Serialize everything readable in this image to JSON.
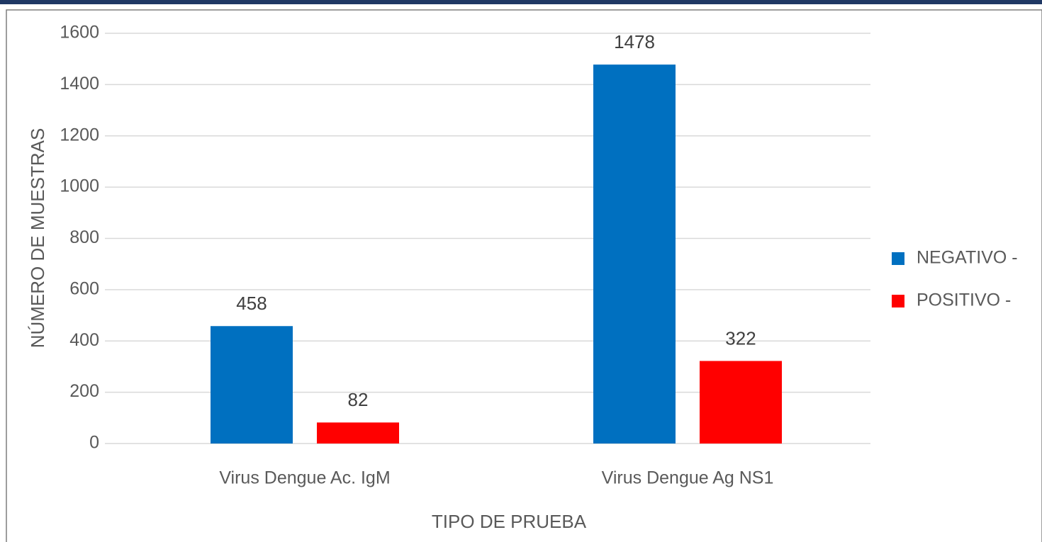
{
  "chart_data": {
    "type": "bar",
    "x_label": "TIPO DE PRUEBA",
    "y_label": "NÚMERO DE MUESTRAS",
    "categories": [
      "Virus Dengue Ac. IgM",
      "Virus Dengue Ag NS1"
    ],
    "series": [
      {
        "name": "NEGATIVO -",
        "color": "#0070c0",
        "values": [
          458,
          1478
        ]
      },
      {
        "name": "POSITIVO -",
        "color": "#ff0000",
        "values": [
          82,
          322
        ]
      }
    ],
    "ylim": [
      0,
      1600
    ],
    "yticks": [
      0,
      200,
      400,
      600,
      800,
      1000,
      1200,
      1400,
      1600
    ],
    "grid": true,
    "legend": "right"
  }
}
